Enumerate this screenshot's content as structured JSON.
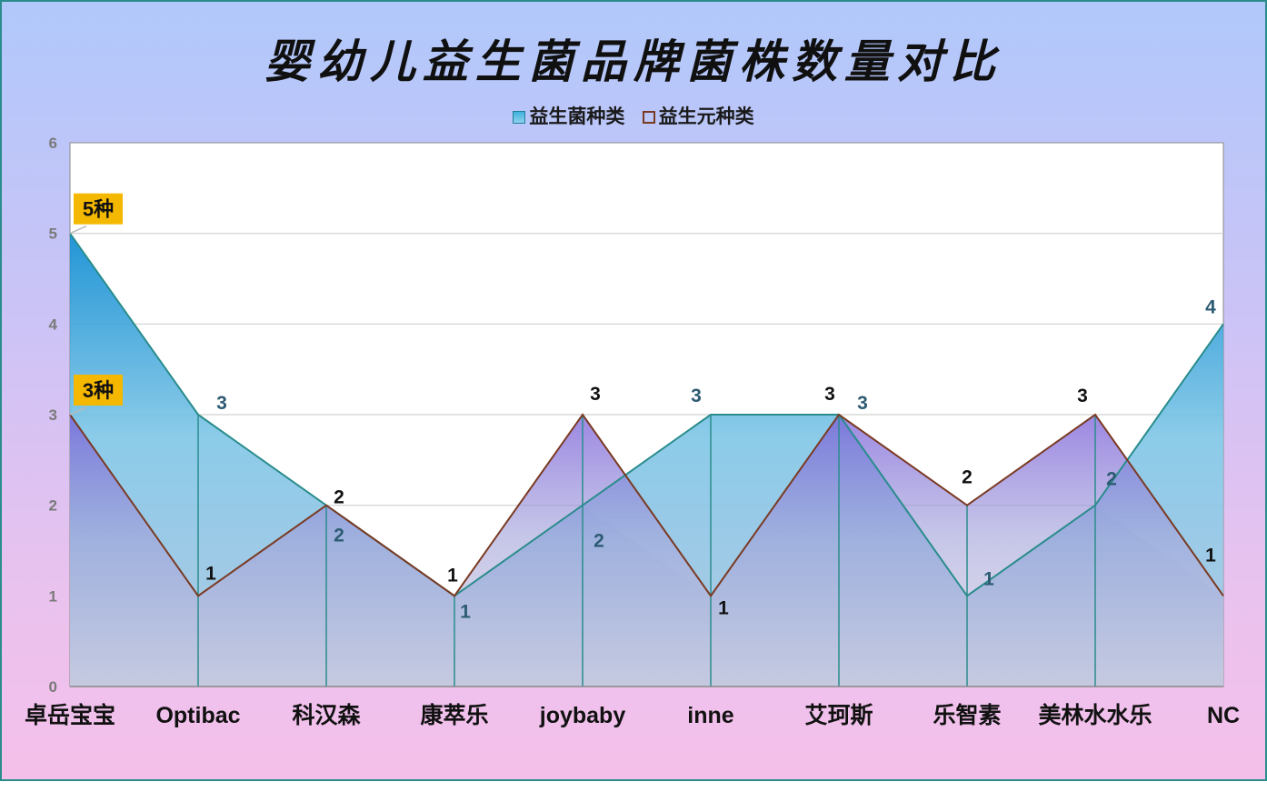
{
  "title": "婴幼儿益生菌品牌菌株数量对比",
  "legend": [
    "益生菌种类",
    "益生元种类"
  ],
  "callouts": [
    "5种",
    "3种"
  ],
  "colors": {
    "series_a_top": "#0b8ad2",
    "series_a_bottom": "#7fcbe8",
    "series_a_line": "#2a8c8c",
    "series_b_top": "#7b5fd8",
    "series_b_line": "#7a3a22",
    "callout_bg": "#f5b800"
  },
  "chart_data": {
    "type": "area",
    "categories": [
      "卓岳宝宝",
      "Optibac",
      "科汉森",
      "康萃乐",
      "joybaby",
      "inne",
      "艾珂斯",
      "乐智素",
      "美林水水乐",
      "NC"
    ],
    "series": [
      {
        "name": "益生菌种类",
        "values": [
          5,
          3,
          2,
          1,
          2,
          3,
          3,
          1,
          2,
          4
        ]
      },
      {
        "name": "益生元种类",
        "values": [
          3,
          1,
          2,
          1,
          3,
          1,
          3,
          2,
          3,
          1
        ]
      }
    ],
    "ylim": [
      0,
      6
    ],
    "yticks": [
      0,
      1,
      2,
      3,
      4,
      5,
      6
    ],
    "grid": true,
    "legend_position": "top"
  }
}
